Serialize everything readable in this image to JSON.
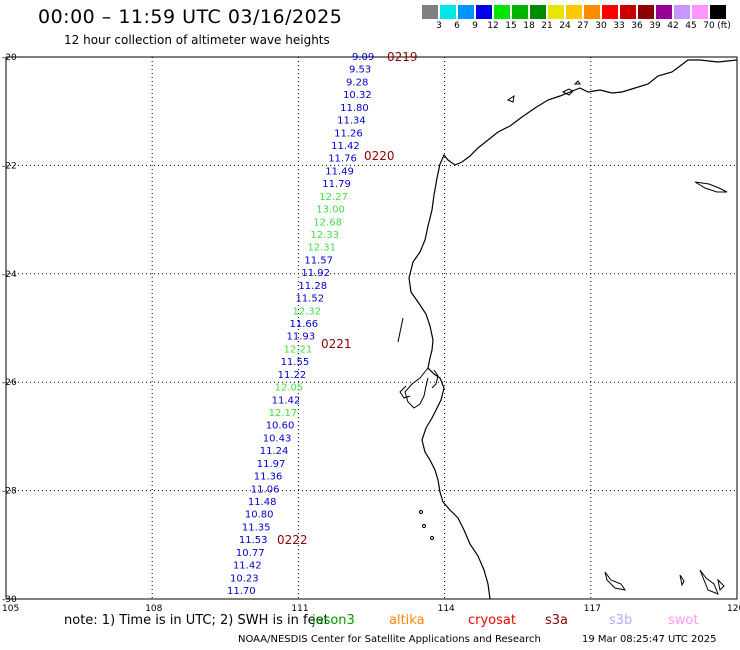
{
  "header": {
    "title": "00:00 – 11:59 UTC 03/16/2025",
    "subtitle": "12 hour collection of altimeter wave heights"
  },
  "colorbar": {
    "unit": "(ft)",
    "stops": [
      {
        "label": "3",
        "color": "#808080"
      },
      {
        "label": "6",
        "color": "#00e6e6"
      },
      {
        "label": "9",
        "color": "#0096ff"
      },
      {
        "label": "12",
        "color": "#0000e6"
      },
      {
        "label": "15",
        "color": "#00e600"
      },
      {
        "label": "18",
        "color": "#00b400"
      },
      {
        "label": "21",
        "color": "#008c00"
      },
      {
        "label": "24",
        "color": "#e6e600"
      },
      {
        "label": "27",
        "color": "#ffc800"
      },
      {
        "label": "30",
        "color": "#ff8c00"
      },
      {
        "label": "33",
        "color": "#ff0000"
      },
      {
        "label": "36",
        "color": "#c80000"
      },
      {
        "label": "39",
        "color": "#8c0000"
      },
      {
        "label": "42",
        "color": "#960096"
      },
      {
        "label": "45",
        "color": "#c896ff"
      },
      {
        "label": "70",
        "color": "#ff96ff"
      },
      {
        "label": "",
        "color": "#000000"
      }
    ]
  },
  "axes": {
    "lat_labels": [
      "-20",
      "-22",
      "-24",
      "-26",
      "-28",
      "-30"
    ],
    "lon_labels": [
      "105",
      "108",
      "111",
      "114",
      "117",
      "120"
    ]
  },
  "time_markers": [
    "0219",
    "0220",
    "0221",
    "0222"
  ],
  "measurements": [
    {
      "v": "9.09",
      "c": "#0000cc"
    },
    {
      "v": "9.53",
      "c": "#0000cc"
    },
    {
      "v": "9.28",
      "c": "#0000cc"
    },
    {
      "v": "10.32",
      "c": "#0000cc"
    },
    {
      "v": "11.80",
      "c": "#0000cc"
    },
    {
      "v": "11.34",
      "c": "#0000cc"
    },
    {
      "v": "11.26",
      "c": "#0000cc"
    },
    {
      "v": "11.42",
      "c": "#0000cc"
    },
    {
      "v": "11.76",
      "c": "#0000cc"
    },
    {
      "v": "11.49",
      "c": "#0000cc"
    },
    {
      "v": "11.79",
      "c": "#0000cc"
    },
    {
      "v": "12.27",
      "c": "#44dd44"
    },
    {
      "v": "13.00",
      "c": "#44dd44"
    },
    {
      "v": "12.68",
      "c": "#44dd44"
    },
    {
      "v": "12.33",
      "c": "#44dd44"
    },
    {
      "v": "12.31",
      "c": "#44dd44"
    },
    {
      "v": "11.57",
      "c": "#0000cc"
    },
    {
      "v": "11.92",
      "c": "#0000cc"
    },
    {
      "v": "11.28",
      "c": "#0000cc"
    },
    {
      "v": "11.52",
      "c": "#0000cc"
    },
    {
      "v": "12.32",
      "c": "#44dd44"
    },
    {
      "v": "11.66",
      "c": "#0000cc"
    },
    {
      "v": "11.93",
      "c": "#0000cc"
    },
    {
      "v": "12.21",
      "c": "#44dd44"
    },
    {
      "v": "11.55",
      "c": "#0000cc"
    },
    {
      "v": "11.22",
      "c": "#0000cc"
    },
    {
      "v": "12.05",
      "c": "#44dd44"
    },
    {
      "v": "11.42",
      "c": "#0000cc"
    },
    {
      "v": "12.17",
      "c": "#44dd44"
    },
    {
      "v": "10.60",
      "c": "#0000cc"
    },
    {
      "v": "10.43",
      "c": "#0000cc"
    },
    {
      "v": "11.24",
      "c": "#0000cc"
    },
    {
      "v": "11.97",
      "c": "#0000cc"
    },
    {
      "v": "11.36",
      "c": "#0000cc"
    },
    {
      "v": "11.06",
      "c": "#0000cc"
    },
    {
      "v": "11.48",
      "c": "#0000cc"
    },
    {
      "v": "10.80",
      "c": "#0000cc"
    },
    {
      "v": "11.35",
      "c": "#0000cc"
    },
    {
      "v": "11.53",
      "c": "#0000cc"
    },
    {
      "v": "10.77",
      "c": "#0000cc"
    },
    {
      "v": "11.42",
      "c": "#0000cc"
    },
    {
      "v": "10.23",
      "c": "#0000cc"
    },
    {
      "v": "11.70",
      "c": "#0000cc"
    }
  ],
  "footer": {
    "note": "note: 1) Time is in UTC; 2) SWH is in feet",
    "satellites": [
      {
        "name": "jason3",
        "color": "#009900"
      },
      {
        "name": "altika",
        "color": "#ff8800"
      },
      {
        "name": "cryosat",
        "color": "#ee0000"
      },
      {
        "name": "s3a",
        "color": "#880000"
      },
      {
        "name": "s3b",
        "color": "#b8a8ff"
      },
      {
        "name": "swot",
        "color": "#ff99ff"
      }
    ],
    "credit": "NOAA/NESDIS Center for Satellite Applications and Research",
    "timestamp": "19 Mar 08:25:47 UTC 2025"
  }
}
